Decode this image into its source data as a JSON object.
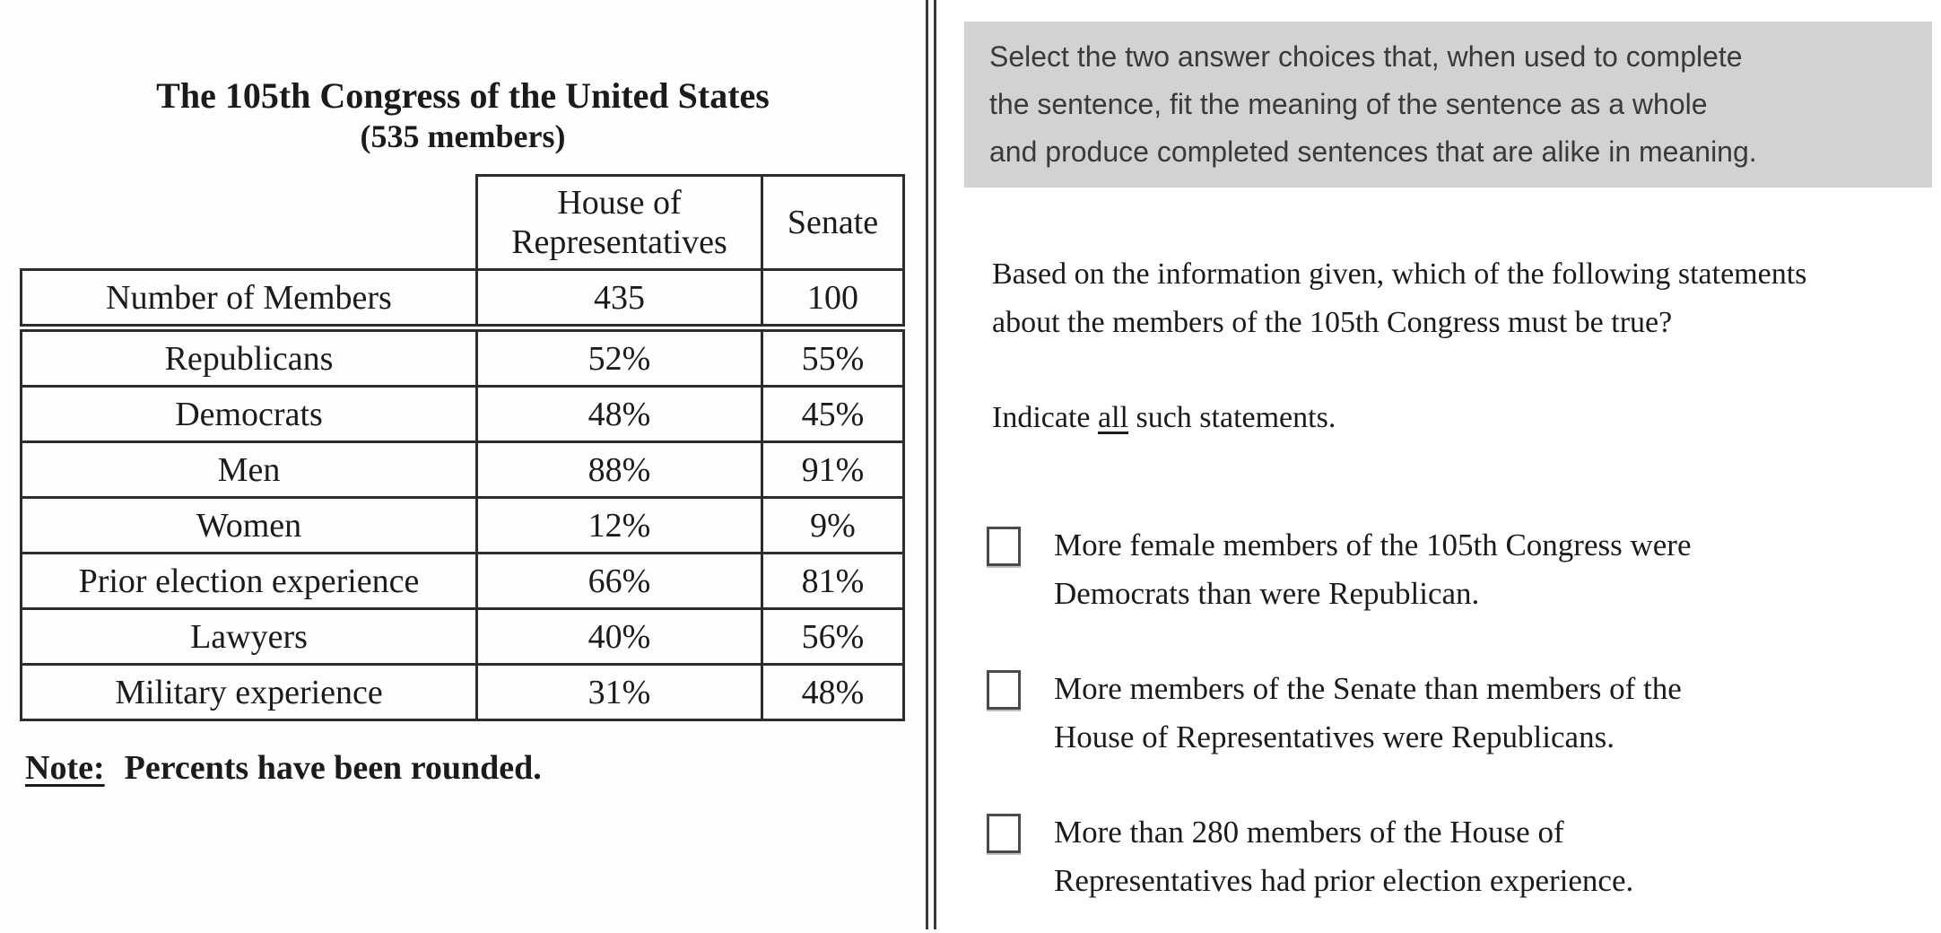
{
  "colors": {
    "instruction_box_bg": "#d2d2d2",
    "instruction_text": "#3a3a3a",
    "body_text": "#1b1b1b",
    "table_border": "#2d2d2d",
    "divider_line": "#3a3a3a"
  },
  "left_panel": {
    "title": "The 105th Congress of the United States",
    "subtitle": "(535 members)",
    "table": {
      "col_headers": [
        "House of Representatives",
        "Senate"
      ],
      "rows": [
        {
          "label": "Number of Members",
          "house": "435",
          "senate": "100"
        },
        {
          "label": "Republicans",
          "house": "52%",
          "senate": "55%"
        },
        {
          "label": "Democrats",
          "house": "48%",
          "senate": "45%"
        },
        {
          "label": "Men",
          "house": "88%",
          "senate": "91%"
        },
        {
          "label": "Women",
          "house": "12%",
          "senate": "9%"
        },
        {
          "label": "Prior election experience",
          "house": "66%",
          "senate": "81%"
        },
        {
          "label": "Lawyers",
          "house": "40%",
          "senate": "56%"
        },
        {
          "label": "Military experience",
          "house": "31%",
          "senate": "48%"
        }
      ]
    },
    "note_label": "Note:",
    "note_text": "Percents have been rounded."
  },
  "right_panel": {
    "instruction_lines": [
      "Select the two answer choices that, when used to complete",
      "the sentence, fit the meaning of the sentence as a whole",
      "and produce completed sentences that are alike in meaning."
    ],
    "question_lines": [
      "Based on the information given, which of the following statements",
      "about the members of the 105th Congress must be true?"
    ],
    "indicate": {
      "prefix": "Indicate ",
      "emphasis": "all",
      "suffix": " such statements."
    },
    "choices": [
      {
        "checked": false,
        "lines": [
          "More female members of the 105th Congress were",
          "Democrats than were Republican."
        ]
      },
      {
        "checked": false,
        "lines": [
          "More members of the Senate than members of the",
          "House of Representatives were Republicans."
        ]
      },
      {
        "checked": false,
        "lines": [
          "More than 280 members of the House of",
          "Representatives had prior election experience."
        ]
      }
    ]
  }
}
